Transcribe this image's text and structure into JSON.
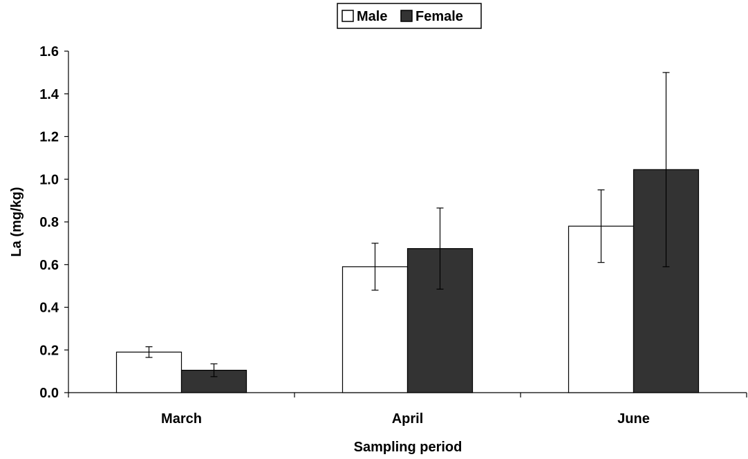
{
  "chart_data": {
    "type": "bar",
    "title": "",
    "xlabel": "Sampling period",
    "ylabel": "La (mg/kg)",
    "categories": [
      "March",
      "April",
      "June"
    ],
    "ylim": [
      0,
      1.6
    ],
    "yticks": [
      "0.0",
      "0.2",
      "0.4",
      "0.6",
      "0.8",
      "1.0",
      "1.2",
      "1.4",
      "1.6"
    ],
    "grid": false,
    "legend_position": "top-center",
    "series": [
      {
        "name": "Male",
        "color": "#ffffff",
        "values": [
          0.19,
          0.59,
          0.78
        ],
        "error": [
          0.025,
          0.11,
          0.17
        ]
      },
      {
        "name": "Female",
        "color": "#333333",
        "values": [
          0.105,
          0.675,
          1.045
        ],
        "error": [
          0.03,
          0.19,
          0.455
        ]
      }
    ]
  }
}
